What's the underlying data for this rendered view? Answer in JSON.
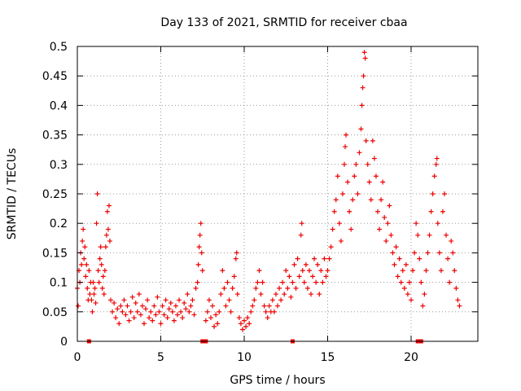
{
  "chart_data": {
    "type": "scatter",
    "title": "Day 133 of 2021, SRMTID for receiver cbaa",
    "xlabel": "GPS time / hours",
    "ylabel": "SRMTID / TECUs",
    "xlim": [
      0,
      24
    ],
    "ylim": [
      0,
      0.5
    ],
    "grid": true,
    "marker": "+",
    "color": "#ee0000",
    "x_ticks": [
      "0",
      "5",
      "10",
      "15",
      "20"
    ],
    "y_ticks": [
      "0",
      "0.05",
      "0.1",
      "0.15",
      "0.2",
      "0.25",
      "0.3",
      "0.35",
      "0.4",
      "0.45",
      "0.5"
    ],
    "zero_markers_x": [
      0.7,
      7.5,
      7.7,
      12.9,
      20.4,
      20.6
    ],
    "series": [
      {
        "name": "SRMTID",
        "points": [
          [
            0.0,
            0.09
          ],
          [
            0.05,
            0.06
          ],
          [
            0.1,
            0.12
          ],
          [
            0.15,
            0.1
          ],
          [
            0.2,
            0.15
          ],
          [
            0.25,
            0.13
          ],
          [
            0.3,
            0.17
          ],
          [
            0.35,
            0.19
          ],
          [
            0.4,
            0.14
          ],
          [
            0.45,
            0.16
          ],
          [
            0.5,
            0.11
          ],
          [
            0.55,
            0.13
          ],
          [
            0.6,
            0.09
          ],
          [
            0.65,
            0.07
          ],
          [
            0.7,
            0.12
          ],
          [
            0.75,
            0.08
          ],
          [
            0.8,
            0.1
          ],
          [
            0.85,
            0.07
          ],
          [
            0.9,
            0.05
          ],
          [
            0.95,
            0.1
          ],
          [
            1.0,
            0.08
          ],
          [
            1.05,
            0.09
          ],
          [
            1.1,
            0.065
          ],
          [
            1.15,
            0.2
          ],
          [
            1.2,
            0.25
          ],
          [
            1.25,
            0.12
          ],
          [
            1.3,
            0.1
          ],
          [
            1.35,
            0.14
          ],
          [
            1.4,
            0.16
          ],
          [
            1.45,
            0.13
          ],
          [
            1.5,
            0.09
          ],
          [
            1.55,
            0.11
          ],
          [
            1.6,
            0.08
          ],
          [
            1.65,
            0.12
          ],
          [
            1.7,
            0.16
          ],
          [
            1.75,
            0.18
          ],
          [
            1.8,
            0.22
          ],
          [
            1.85,
            0.19
          ],
          [
            1.9,
            0.23
          ],
          [
            1.95,
            0.17
          ],
          [
            2.0,
            0.07
          ],
          [
            2.1,
            0.05
          ],
          [
            2.2,
            0.065
          ],
          [
            2.3,
            0.04
          ],
          [
            2.4,
            0.055
          ],
          [
            2.5,
            0.03
          ],
          [
            2.6,
            0.06
          ],
          [
            2.7,
            0.05
          ],
          [
            2.8,
            0.07
          ],
          [
            2.9,
            0.045
          ],
          [
            3.0,
            0.06
          ],
          [
            3.1,
            0.035
          ],
          [
            3.2,
            0.05
          ],
          [
            3.3,
            0.075
          ],
          [
            3.4,
            0.04
          ],
          [
            3.5,
            0.065
          ],
          [
            3.6,
            0.05
          ],
          [
            3.7,
            0.08
          ],
          [
            3.8,
            0.045
          ],
          [
            3.9,
            0.06
          ],
          [
            4.0,
            0.03
          ],
          [
            4.1,
            0.055
          ],
          [
            4.2,
            0.07
          ],
          [
            4.3,
            0.04
          ],
          [
            4.4,
            0.05
          ],
          [
            4.5,
            0.035
          ],
          [
            4.6,
            0.06
          ],
          [
            4.7,
            0.045
          ],
          [
            4.8,
            0.075
          ],
          [
            4.9,
            0.05
          ],
          [
            5.0,
            0.03
          ],
          [
            5.1,
            0.06
          ],
          [
            5.2,
            0.045
          ],
          [
            5.3,
            0.07
          ],
          [
            5.4,
            0.04
          ],
          [
            5.5,
            0.055
          ],
          [
            5.6,
            0.065
          ],
          [
            5.7,
            0.05
          ],
          [
            5.8,
            0.035
          ],
          [
            5.9,
            0.06
          ],
          [
            6.0,
            0.045
          ],
          [
            6.1,
            0.07
          ],
          [
            6.2,
            0.05
          ],
          [
            6.3,
            0.04
          ],
          [
            6.4,
            0.065
          ],
          [
            6.5,
            0.055
          ],
          [
            6.6,
            0.08
          ],
          [
            6.7,
            0.05
          ],
          [
            6.8,
            0.06
          ],
          [
            6.9,
            0.07
          ],
          [
            7.0,
            0.045
          ],
          [
            7.1,
            0.09
          ],
          [
            7.2,
            0.1
          ],
          [
            7.25,
            0.13
          ],
          [
            7.3,
            0.16
          ],
          [
            7.35,
            0.18
          ],
          [
            7.4,
            0.2
          ],
          [
            7.45,
            0.15
          ],
          [
            7.5,
            0.12
          ],
          [
            7.7,
            0.035
          ],
          [
            7.8,
            0.05
          ],
          [
            7.9,
            0.07
          ],
          [
            8.0,
            0.04
          ],
          [
            8.1,
            0.06
          ],
          [
            8.2,
            0.025
          ],
          [
            8.3,
            0.045
          ],
          [
            8.4,
            0.03
          ],
          [
            8.5,
            0.05
          ],
          [
            8.6,
            0.08
          ],
          [
            8.7,
            0.12
          ],
          [
            8.8,
            0.09
          ],
          [
            8.9,
            0.06
          ],
          [
            9.0,
            0.1
          ],
          [
            9.1,
            0.07
          ],
          [
            9.2,
            0.05
          ],
          [
            9.3,
            0.09
          ],
          [
            9.4,
            0.11
          ],
          [
            9.5,
            0.14
          ],
          [
            9.55,
            0.15
          ],
          [
            9.6,
            0.08
          ],
          [
            9.7,
            0.04
          ],
          [
            9.8,
            0.03
          ],
          [
            9.9,
            0.02
          ],
          [
            10.0,
            0.035
          ],
          [
            10.1,
            0.025
          ],
          [
            10.2,
            0.04
          ],
          [
            10.3,
            0.03
          ],
          [
            10.4,
            0.05
          ],
          [
            10.5,
            0.06
          ],
          [
            10.6,
            0.07
          ],
          [
            10.7,
            0.09
          ],
          [
            10.8,
            0.1
          ],
          [
            10.9,
            0.12
          ],
          [
            11.0,
            0.08
          ],
          [
            11.1,
            0.1
          ],
          [
            11.2,
            0.06
          ],
          [
            11.3,
            0.05
          ],
          [
            11.4,
            0.04
          ],
          [
            11.5,
            0.06
          ],
          [
            11.6,
            0.05
          ],
          [
            11.7,
            0.07
          ],
          [
            11.8,
            0.05
          ],
          [
            11.9,
            0.08
          ],
          [
            12.0,
            0.06
          ],
          [
            12.1,
            0.09
          ],
          [
            12.2,
            0.07
          ],
          [
            12.3,
            0.1
          ],
          [
            12.4,
            0.08
          ],
          [
            12.5,
            0.12
          ],
          [
            12.6,
            0.09
          ],
          [
            12.7,
            0.11
          ],
          [
            12.8,
            0.075
          ],
          [
            12.9,
            0.1
          ],
          [
            13.0,
            0.13
          ],
          [
            13.1,
            0.09
          ],
          [
            13.2,
            0.14
          ],
          [
            13.3,
            0.11
          ],
          [
            13.4,
            0.18
          ],
          [
            13.45,
            0.2
          ],
          [
            13.5,
            0.12
          ],
          [
            13.6,
            0.1
          ],
          [
            13.7,
            0.13
          ],
          [
            13.8,
            0.09
          ],
          [
            13.9,
            0.12
          ],
          [
            14.0,
            0.08
          ],
          [
            14.1,
            0.11
          ],
          [
            14.2,
            0.14
          ],
          [
            14.3,
            0.1
          ],
          [
            14.4,
            0.13
          ],
          [
            14.5,
            0.08
          ],
          [
            14.6,
            0.12
          ],
          [
            14.7,
            0.1
          ],
          [
            14.8,
            0.14
          ],
          [
            14.9,
            0.11
          ],
          [
            15.0,
            0.12
          ],
          [
            15.1,
            0.14
          ],
          [
            15.2,
            0.16
          ],
          [
            15.3,
            0.19
          ],
          [
            15.4,
            0.22
          ],
          [
            15.5,
            0.24
          ],
          [
            15.6,
            0.28
          ],
          [
            15.7,
            0.2
          ],
          [
            15.8,
            0.17
          ],
          [
            15.9,
            0.25
          ],
          [
            16.0,
            0.3
          ],
          [
            16.05,
            0.33
          ],
          [
            16.1,
            0.35
          ],
          [
            16.2,
            0.27
          ],
          [
            16.3,
            0.22
          ],
          [
            16.4,
            0.19
          ],
          [
            16.5,
            0.24
          ],
          [
            16.6,
            0.28
          ],
          [
            16.7,
            0.3
          ],
          [
            16.8,
            0.25
          ],
          [
            16.9,
            0.32
          ],
          [
            17.0,
            0.36
          ],
          [
            17.05,
            0.4
          ],
          [
            17.1,
            0.43
          ],
          [
            17.15,
            0.45
          ],
          [
            17.2,
            0.49
          ],
          [
            17.25,
            0.48
          ],
          [
            17.3,
            0.34
          ],
          [
            17.4,
            0.3
          ],
          [
            17.5,
            0.27
          ],
          [
            17.6,
            0.24
          ],
          [
            17.7,
            0.34
          ],
          [
            17.8,
            0.31
          ],
          [
            17.9,
            0.28
          ],
          [
            18.0,
            0.22
          ],
          [
            18.1,
            0.19
          ],
          [
            18.2,
            0.24
          ],
          [
            18.3,
            0.27
          ],
          [
            18.4,
            0.21
          ],
          [
            18.5,
            0.17
          ],
          [
            18.6,
            0.2
          ],
          [
            18.7,
            0.23
          ],
          [
            18.8,
            0.18
          ],
          [
            18.9,
            0.15
          ],
          [
            19.0,
            0.13
          ],
          [
            19.1,
            0.16
          ],
          [
            19.2,
            0.11
          ],
          [
            19.3,
            0.14
          ],
          [
            19.4,
            0.1
          ],
          [
            19.5,
            0.12
          ],
          [
            19.6,
            0.09
          ],
          [
            19.7,
            0.13
          ],
          [
            19.8,
            0.08
          ],
          [
            19.9,
            0.1
          ],
          [
            20.0,
            0.07
          ],
          [
            20.1,
            0.12
          ],
          [
            20.2,
            0.15
          ],
          [
            20.3,
            0.2
          ],
          [
            20.4,
            0.18
          ],
          [
            20.5,
            0.14
          ],
          [
            20.6,
            0.1
          ],
          [
            20.7,
            0.06
          ],
          [
            20.8,
            0.08
          ],
          [
            20.9,
            0.12
          ],
          [
            21.0,
            0.15
          ],
          [
            21.1,
            0.18
          ],
          [
            21.2,
            0.22
          ],
          [
            21.3,
            0.25
          ],
          [
            21.4,
            0.28
          ],
          [
            21.5,
            0.3
          ],
          [
            21.55,
            0.31
          ],
          [
            21.6,
            0.2
          ],
          [
            21.7,
            0.15
          ],
          [
            21.8,
            0.12
          ],
          [
            21.9,
            0.22
          ],
          [
            22.0,
            0.25
          ],
          [
            22.1,
            0.18
          ],
          [
            22.2,
            0.14
          ],
          [
            22.3,
            0.1
          ],
          [
            22.4,
            0.17
          ],
          [
            22.5,
            0.15
          ],
          [
            22.6,
            0.12
          ],
          [
            22.7,
            0.09
          ],
          [
            22.8,
            0.07
          ],
          [
            22.9,
            0.06
          ]
        ]
      }
    ]
  }
}
